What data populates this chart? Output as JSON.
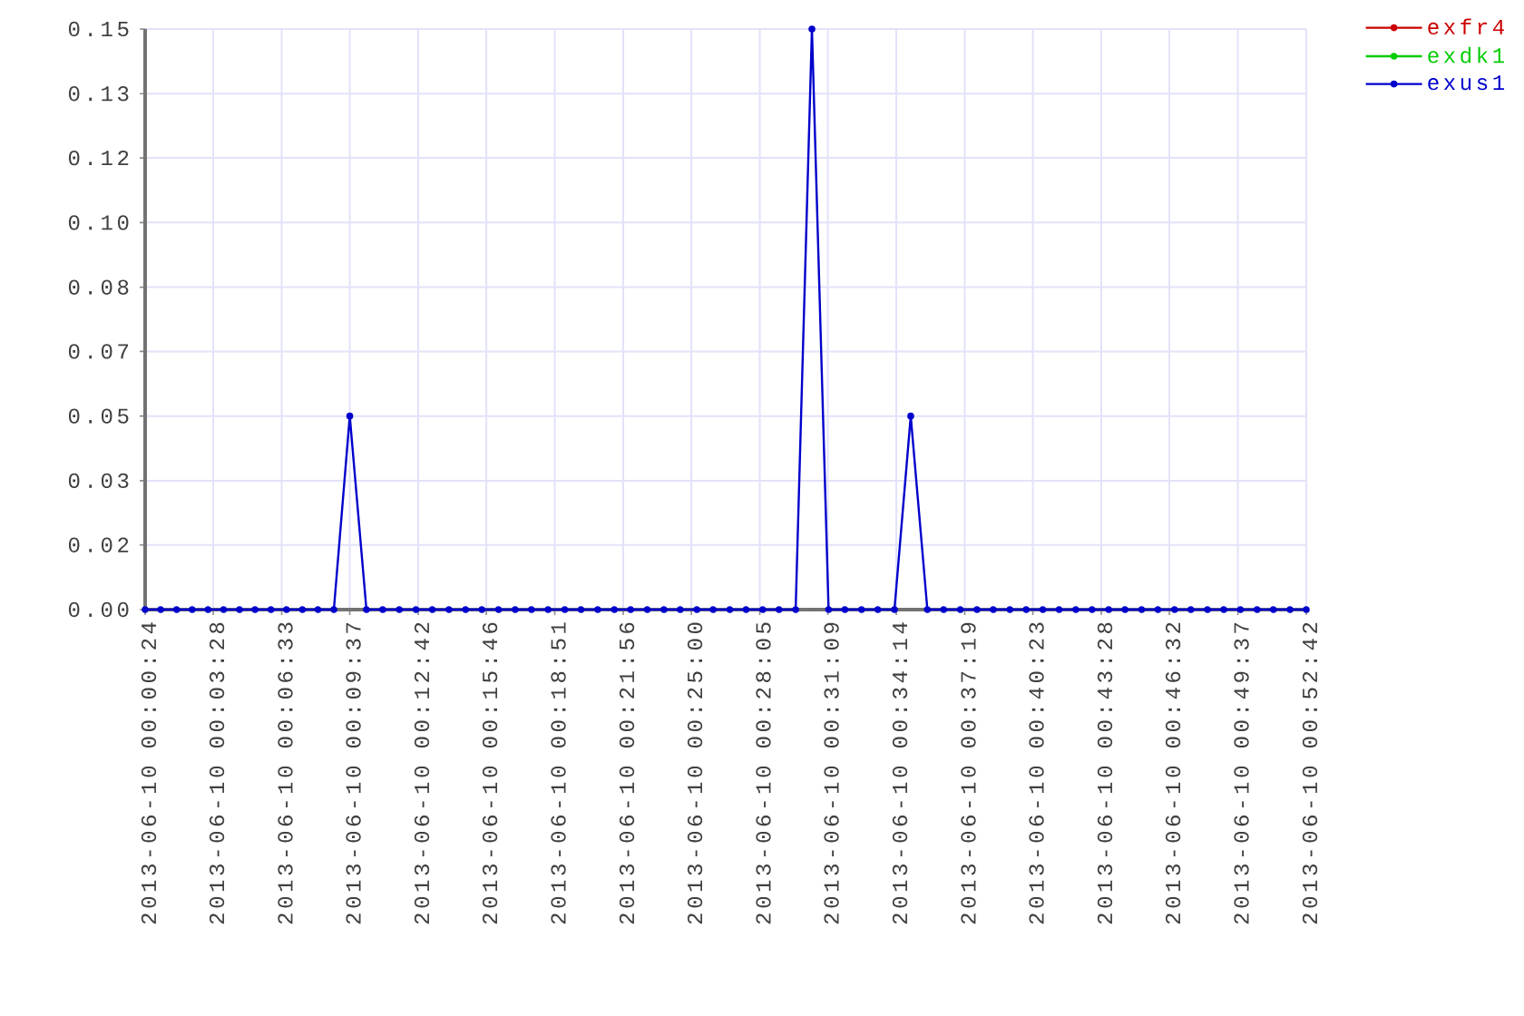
{
  "chart_data": {
    "type": "line",
    "x": [
      "2013-06-10T00:00:24",
      "2013-06-10T00:01:06",
      "2013-06-10T00:01:49",
      "2013-06-10T00:02:31",
      "2013-06-10T00:03:14",
      "2013-06-10T00:03:56",
      "2013-06-10T00:04:39",
      "2013-06-10T00:05:21",
      "2013-06-10T00:06:04",
      "2013-06-10T00:06:46",
      "2013-06-10T00:07:29",
      "2013-06-10T00:08:11",
      "2013-06-10T00:08:54",
      "2013-06-10T00:09:37",
      "2013-06-10T00:10:22",
      "2013-06-10T00:11:06",
      "2013-06-10T00:11:51",
      "2013-06-10T00:12:36",
      "2013-06-10T00:13:20",
      "2013-06-10T00:14:05",
      "2013-06-10T00:14:50",
      "2013-06-10T00:15:34",
      "2013-06-10T00:16:19",
      "2013-06-10T00:17:04",
      "2013-06-10T00:17:48",
      "2013-06-10T00:18:33",
      "2013-06-10T00:19:18",
      "2013-06-10T00:20:02",
      "2013-06-10T00:20:47",
      "2013-06-10T00:21:32",
      "2013-06-10T00:22:16",
      "2013-06-10T00:23:01",
      "2013-06-10T00:23:46",
      "2013-06-10T00:24:30",
      "2013-06-10T00:25:15",
      "2013-06-10T00:25:59",
      "2013-06-10T00:26:44",
      "2013-06-10T00:27:28",
      "2013-06-10T00:28:13",
      "2013-06-10T00:28:57",
      "2013-06-10T00:29:42",
      "2013-06-10T00:30:26",
      "2013-06-10T00:31:11",
      "2013-06-10T00:31:55",
      "2013-06-10T00:32:40",
      "2013-06-10T00:33:24",
      "2013-06-10T00:34:09",
      "2013-06-10T00:34:53",
      "2013-06-10T00:35:38",
      "2013-06-10T00:36:22",
      "2013-06-10T00:37:07",
      "2013-06-10T00:37:52",
      "2013-06-10T00:38:36",
      "2013-06-10T00:39:21",
      "2013-06-10T00:40:05",
      "2013-06-10T00:40:50",
      "2013-06-10T00:41:34",
      "2013-06-10T00:42:19",
      "2013-06-10T00:43:03",
      "2013-06-10T00:43:48",
      "2013-06-10T00:44:32",
      "2013-06-10T00:45:17",
      "2013-06-10T00:46:01",
      "2013-06-10T00:46:46",
      "2013-06-10T00:47:30",
      "2013-06-10T00:48:15",
      "2013-06-10T00:48:59",
      "2013-06-10T00:49:44",
      "2013-06-10T00:50:29",
      "2013-06-10T00:51:13",
      "2013-06-10T00:51:58",
      "2013-06-10T00:52:42"
    ],
    "series": [
      {
        "name": "exfr4",
        "color": "#cc0000",
        "values": [
          null,
          null,
          null,
          null,
          null,
          null,
          null,
          null,
          null,
          null,
          null,
          null,
          null,
          null,
          null,
          null,
          null,
          null,
          null,
          null,
          null,
          null,
          null,
          null,
          null,
          null,
          null,
          null,
          null,
          null,
          null,
          null,
          null,
          null,
          null,
          null,
          null,
          null,
          null,
          null,
          null,
          null,
          null,
          null,
          null,
          null,
          null,
          null,
          null,
          null,
          null,
          null,
          null,
          null,
          null,
          null,
          null,
          null,
          null,
          null,
          null,
          null,
          null,
          null,
          null,
          null,
          null,
          null,
          null,
          null,
          null,
          null
        ]
      },
      {
        "name": "exdk1",
        "color": "#00cc00",
        "values": [
          null,
          null,
          null,
          null,
          null,
          null,
          null,
          null,
          null,
          null,
          null,
          null,
          null,
          null,
          null,
          null,
          null,
          null,
          null,
          null,
          null,
          null,
          null,
          null,
          null,
          null,
          null,
          null,
          null,
          null,
          null,
          null,
          null,
          null,
          null,
          null,
          null,
          null,
          null,
          null,
          null,
          null,
          null,
          null,
          null,
          null,
          null,
          null,
          null,
          null,
          null,
          null,
          null,
          null,
          null,
          null,
          null,
          null,
          null,
          null,
          null,
          null,
          null,
          null,
          null,
          null,
          null,
          null,
          null,
          null,
          null,
          null
        ]
      },
      {
        "name": "exus1",
        "color": "#0000cc",
        "values": [
          0,
          0,
          0,
          0,
          0,
          0,
          0,
          0,
          0,
          0,
          0,
          0,
          0,
          0.05,
          0,
          0,
          0,
          0,
          0,
          0,
          0,
          0,
          0,
          0,
          0,
          0,
          0,
          0,
          0,
          0,
          0,
          0,
          0,
          0,
          0,
          0,
          0,
          0,
          0,
          0,
          0,
          0.15,
          0,
          0,
          0,
          0,
          0,
          0.05,
          0,
          0,
          0,
          0,
          0,
          0,
          0,
          0,
          0,
          0,
          0,
          0,
          0,
          0,
          0,
          0,
          0,
          0,
          0,
          0,
          0,
          0,
          0,
          0
        ]
      }
    ],
    "xlim": [
      "2013-06-10T00:00:24",
      "2013-06-10T00:52:42"
    ],
    "xticks": [
      {
        "value": "2013-06-10T00:00:24",
        "label": "2013-06-10 00:00:24"
      },
      {
        "value": "2013-06-10T00:03:28",
        "label": "2013-06-10 00:03:28"
      },
      {
        "value": "2013-06-10T00:06:33",
        "label": "2013-06-10 00:06:33"
      },
      {
        "value": "2013-06-10T00:09:37",
        "label": "2013-06-10 00:09:37"
      },
      {
        "value": "2013-06-10T00:12:42",
        "label": "2013-06-10 00:12:42"
      },
      {
        "value": "2013-06-10T00:15:46",
        "label": "2013-06-10 00:15:46"
      },
      {
        "value": "2013-06-10T00:18:51",
        "label": "2013-06-10 00:18:51"
      },
      {
        "value": "2013-06-10T00:21:56",
        "label": "2013-06-10 00:21:56"
      },
      {
        "value": "2013-06-10T00:25:00",
        "label": "2013-06-10 00:25:00"
      },
      {
        "value": "2013-06-10T00:28:05",
        "label": "2013-06-10 00:28:05"
      },
      {
        "value": "2013-06-10T00:31:09",
        "label": "2013-06-10 00:31:09"
      },
      {
        "value": "2013-06-10T00:34:14",
        "label": "2013-06-10 00:34:14"
      },
      {
        "value": "2013-06-10T00:37:19",
        "label": "2013-06-10 00:37:19"
      },
      {
        "value": "2013-06-10T00:40:23",
        "label": "2013-06-10 00:40:23"
      },
      {
        "value": "2013-06-10T00:43:28",
        "label": "2013-06-10 00:43:28"
      },
      {
        "value": "2013-06-10T00:46:32",
        "label": "2013-06-10 00:46:32"
      },
      {
        "value": "2013-06-10T00:49:37",
        "label": "2013-06-10 00:49:37"
      },
      {
        "value": "2013-06-10T00:52:42",
        "label": "2013-06-10 00:52:42"
      }
    ],
    "ylim": [
      0,
      0.15
    ],
    "yticks": [
      {
        "value": 0,
        "label": "0.00"
      },
      {
        "value": 0.0167,
        "label": "0.02"
      },
      {
        "value": 0.0333,
        "label": "0.03"
      },
      {
        "value": 0.05,
        "label": "0.05"
      },
      {
        "value": 0.0667,
        "label": "0.07"
      },
      {
        "value": 0.0833,
        "label": "0.08"
      },
      {
        "value": 0.1,
        "label": "0.10"
      },
      {
        "value": 0.1167,
        "label": "0.12"
      },
      {
        "value": 0.1333,
        "label": "0.13"
      },
      {
        "value": 0.15,
        "label": "0.15"
      }
    ],
    "grid": true,
    "legend": "top right",
    "marker": "circle"
  }
}
